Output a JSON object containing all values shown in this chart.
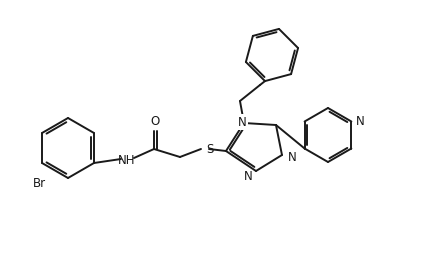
{
  "bg_color": "#ffffff",
  "line_color": "#1a1a1a",
  "line_width": 1.4,
  "font_size": 8.5,
  "figsize": [
    4.36,
    2.59
  ],
  "dpi": 100,
  "xlim": [
    0,
    436
  ],
  "ylim": [
    0,
    259
  ]
}
